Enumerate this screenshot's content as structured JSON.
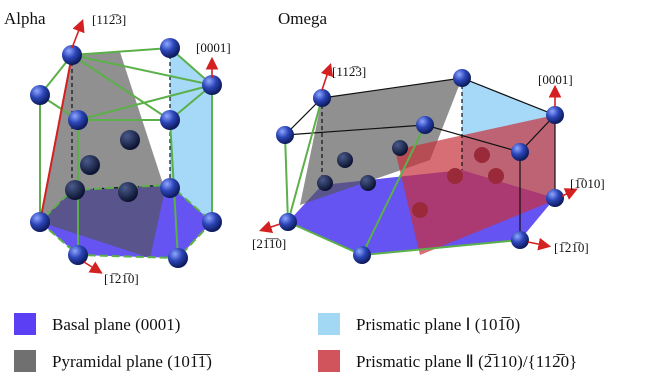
{
  "panels": [
    {
      "title": "Alpha",
      "directions": [
        "[112̅3]",
        "[0001]",
        "[1̅21̅0]"
      ]
    },
    {
      "title": "Omega",
      "directions": [
        "[112̅3]",
        "[0001]",
        "[1̅010]",
        "[21̅1̅0]",
        "[1̅21̅0]"
      ]
    }
  ],
  "legend": [
    {
      "label": "Basal plane (0001)",
      "color": "#5a3ff5"
    },
    {
      "label": "Pyramidal plane (101̅1̅)",
      "color": "#707070"
    },
    {
      "label": "Prismatic plane Ⅰ (101̅0)",
      "color": "#a3d8f5"
    },
    {
      "label": "Prismatic plane Ⅱ (2̅110)/{112̅0}",
      "color": "#d1545c"
    }
  ]
}
